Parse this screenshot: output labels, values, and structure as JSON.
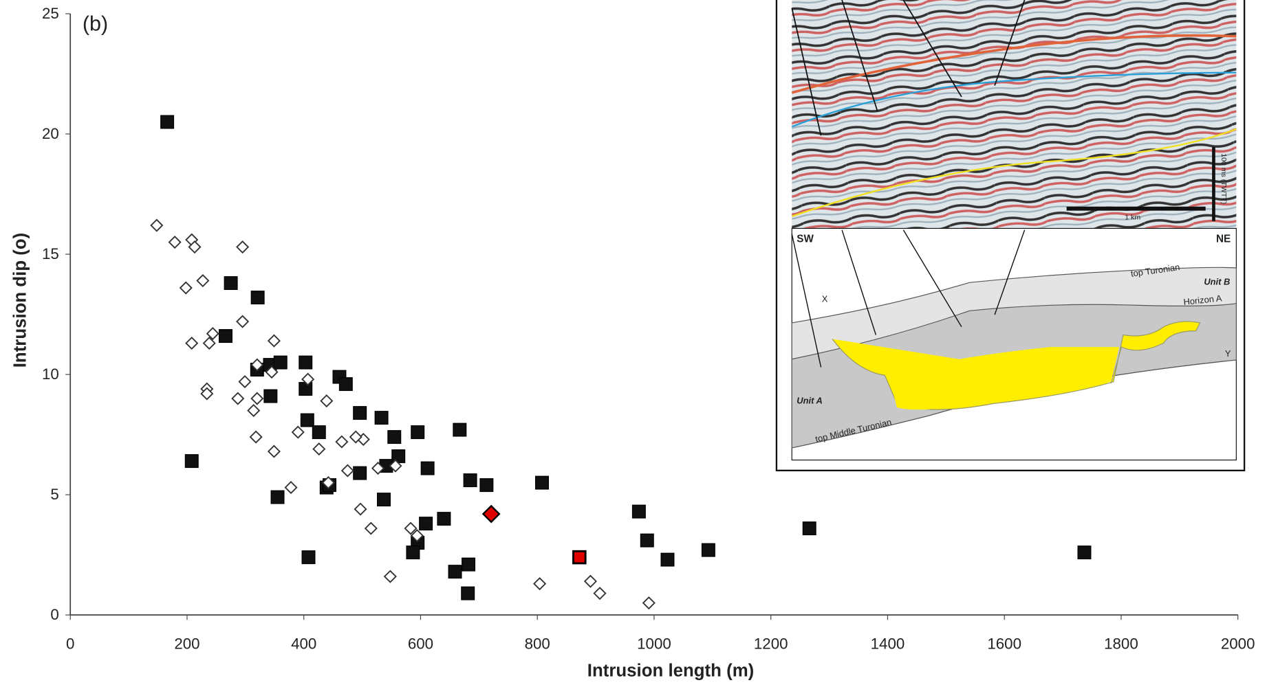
{
  "chart_data": {
    "type": "scatter",
    "annotation": "(b)",
    "x_label": "Intrusion length (m)",
    "y_label": "Intrusion dip (o)",
    "xlim": [
      0,
      2000
    ],
    "ylim": [
      0,
      25
    ],
    "xticks": [
      0,
      200,
      400,
      600,
      800,
      1000,
      1200,
      1400,
      1600,
      1800,
      2000
    ],
    "yticks": [
      0,
      5,
      10,
      15,
      20,
      25
    ],
    "series": [
      {
        "marker": "square",
        "color": "#000000",
        "fill": "#111111",
        "x": [
          166,
          275,
          321,
          266,
          208,
          320,
          342,
          360,
          343,
          403,
          403,
          406,
          426,
          461,
          472,
          439,
          444,
          355,
          408,
          496,
          533,
          555,
          595,
          541,
          562,
          496,
          537,
          612,
          667,
          685,
          713,
          609,
          640,
          595,
          587,
          659,
          682,
          681,
          808,
          974,
          988,
          1023,
          1093,
          1266,
          1737
        ],
        "values": [
          20.5,
          13.8,
          13.2,
          11.6,
          6.4,
          10.2,
          10.4,
          10.5,
          9.1,
          10.5,
          9.4,
          8.1,
          7.6,
          9.9,
          9.6,
          5.3,
          5.4,
          4.9,
          2.4,
          8.4,
          8.2,
          7.4,
          7.6,
          6.2,
          6.6,
          5.9,
          4.8,
          6.1,
          7.7,
          5.6,
          5.4,
          3.8,
          4.0,
          3.0,
          2.6,
          1.8,
          2.1,
          0.9,
          5.5,
          4.3,
          3.1,
          2.3,
          2.7,
          3.6,
          2.6
        ]
      },
      {
        "marker": "diamond",
        "color": "#333333",
        "fill": "#ffffff",
        "x": [
          148,
          179,
          208,
          213,
          198,
          227,
          295,
          244,
          238,
          208,
          295,
          349,
          320,
          345,
          299,
          234,
          234,
          287,
          320,
          314,
          407,
          439,
          318,
          390,
          349,
          426,
          465,
          502,
          489,
          475,
          527,
          557,
          442,
          378,
          497,
          515,
          583,
          594,
          548,
          804,
          891,
          907,
          991
        ],
        "values": [
          16.2,
          15.5,
          15.6,
          15.3,
          13.6,
          13.9,
          15.3,
          11.7,
          11.3,
          11.3,
          12.2,
          11.4,
          10.4,
          10.1,
          9.7,
          9.4,
          9.2,
          9.0,
          9.0,
          8.5,
          9.8,
          8.9,
          7.4,
          7.6,
          6.8,
          6.9,
          7.2,
          7.3,
          7.4,
          6.0,
          6.1,
          6.2,
          5.5,
          5.3,
          4.4,
          3.6,
          3.6,
          3.3,
          1.6,
          1.3,
          1.4,
          0.9,
          0.5
        ]
      },
      {
        "marker": "diamond",
        "color": "#000000",
        "fill": "#e00000",
        "x": [
          721
        ],
        "values": [
          4.2
        ]
      },
      {
        "marker": "square",
        "color": "#000000",
        "fill": "#e00000",
        "x": [
          872
        ],
        "values": [
          2.4
        ]
      }
    ],
    "inset": {
      "labels": [
        "SW",
        "NE",
        "top Turonian",
        "Unit B",
        "Horizon A",
        "Unit A",
        "top Middle Turonian",
        "X",
        "Y",
        "1 km",
        "100 ms (TWTT)"
      ]
    }
  }
}
